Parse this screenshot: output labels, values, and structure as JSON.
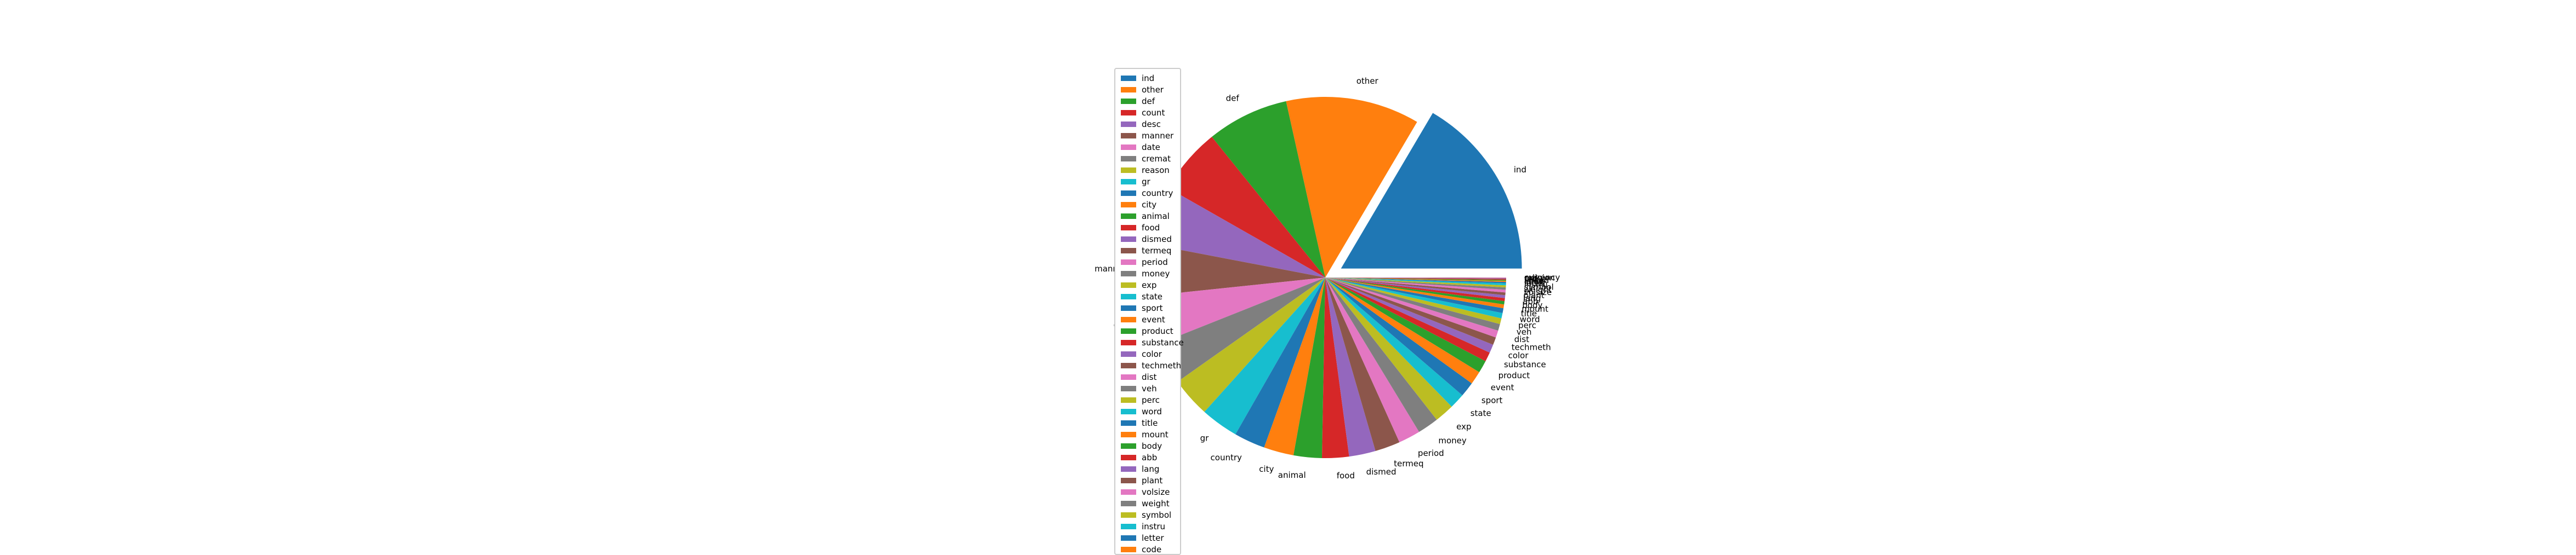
{
  "chart_data": {
    "type": "pie",
    "categories": [
      "ind",
      "other",
      "def",
      "count",
      "desc",
      "manner",
      "date",
      "cremat",
      "reason",
      "gr",
      "country",
      "city",
      "animal",
      "food",
      "dismed",
      "termeq",
      "period",
      "money",
      "exp",
      "state",
      "sport",
      "event",
      "product",
      "substance",
      "color",
      "techmeth",
      "dist",
      "veh",
      "perc",
      "word",
      "title",
      "mount",
      "body",
      "abb",
      "lang",
      "plant",
      "volsize",
      "weight",
      "symbol",
      "instru",
      "letter",
      "code",
      "speed",
      "temp",
      "ord",
      "religion",
      "currency"
    ],
    "values": [
      963,
      697,
      426,
      347,
      306,
      272,
      255,
      219,
      207,
      197,
      162,
      156,
      147,
      140,
      138,
      131,
      114,
      110,
      102,
      80,
      78,
      69,
      65,
      49,
      44,
      40,
      37,
      35,
      30,
      28,
      25,
      20,
      17,
      16,
      15,
      14,
      14,
      12,
      11,
      10,
      7,
      6,
      5,
      5,
      3,
      2,
      2
    ],
    "colors": [
      "#1f77b4",
      "#ff7f0e",
      "#2ca02c",
      "#d62728",
      "#9467bd",
      "#8c564b",
      "#e377c2",
      "#7f7f7f",
      "#bcbd22",
      "#17becf"
    ],
    "explode": [
      0.1,
      0,
      0,
      0,
      0,
      0,
      0,
      0,
      0,
      0,
      0,
      0,
      0,
      0,
      0,
      0,
      0,
      0,
      0,
      0,
      0,
      0,
      0,
      0,
      0,
      0,
      0,
      0,
      0,
      0,
      0,
      0,
      0,
      0,
      0,
      0,
      0,
      0,
      0,
      0,
      0,
      0,
      0,
      0,
      0,
      0,
      0
    ],
    "start_angle_deg": 0,
    "direction": "counterclockwise",
    "legend": {
      "position": "left",
      "entries_visible": [
        "ind",
        "other",
        "def",
        "count",
        "desc",
        "manner",
        "date",
        "cremat",
        "reason",
        "gr",
        "country",
        "city",
        "animal",
        "food",
        "dismed",
        "termeq",
        "period",
        "money",
        "exp",
        "state",
        "sport",
        "event",
        "product",
        "substance",
        "color",
        "techmeth",
        "dist",
        "veh",
        "perc",
        "word",
        "title",
        "mount",
        "body",
        "abb",
        "lang",
        "plant",
        "volsize",
        "weight",
        "symbol",
        "instru",
        "letter",
        "code"
      ]
    },
    "title": "",
    "grid": false
  }
}
